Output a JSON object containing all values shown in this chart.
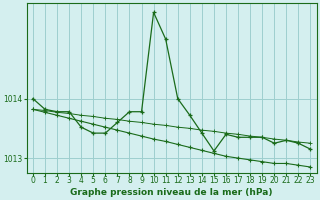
{
  "title": "Graphe pression niveau de la mer (hPa)",
  "bg_color": "#d4efef",
  "grid_color": "#9ecece",
  "line_color": "#1a6b1a",
  "xlim": [
    -0.5,
    23.5
  ],
  "ylim": [
    1012.75,
    1015.6
  ],
  "yticks": [
    1013,
    1014
  ],
  "xticks": [
    0,
    1,
    2,
    3,
    4,
    5,
    6,
    7,
    8,
    9,
    10,
    11,
    12,
    13,
    14,
    15,
    16,
    17,
    18,
    19,
    20,
    21,
    22,
    23
  ],
  "series1": [
    1014.0,
    1013.82,
    1013.78,
    1013.78,
    1013.52,
    1013.42,
    1013.42,
    1013.6,
    1013.78,
    1013.78,
    1015.45,
    1015.0,
    1014.0,
    1013.72,
    1013.42,
    1013.12,
    1013.4,
    1013.35,
    1013.35,
    1013.35,
    1013.25,
    1013.3,
    1013.25,
    1013.15
  ],
  "series2": [
    1013.82,
    1013.77,
    1013.72,
    1013.67,
    1013.62,
    1013.57,
    1013.52,
    1013.47,
    1013.42,
    1013.37,
    1013.32,
    1013.28,
    1013.23,
    1013.18,
    1013.13,
    1013.08,
    1013.03,
    1013.0,
    1012.97,
    1012.94,
    1012.91,
    1012.91,
    1012.88,
    1012.85
  ],
  "series3": [
    1013.82,
    1013.8,
    1013.77,
    1013.75,
    1013.72,
    1013.7,
    1013.67,
    1013.65,
    1013.62,
    1013.6,
    1013.57,
    1013.55,
    1013.52,
    1013.5,
    1013.47,
    1013.45,
    1013.42,
    1013.4,
    1013.37,
    1013.35,
    1013.32,
    1013.3,
    1013.27,
    1013.25
  ]
}
